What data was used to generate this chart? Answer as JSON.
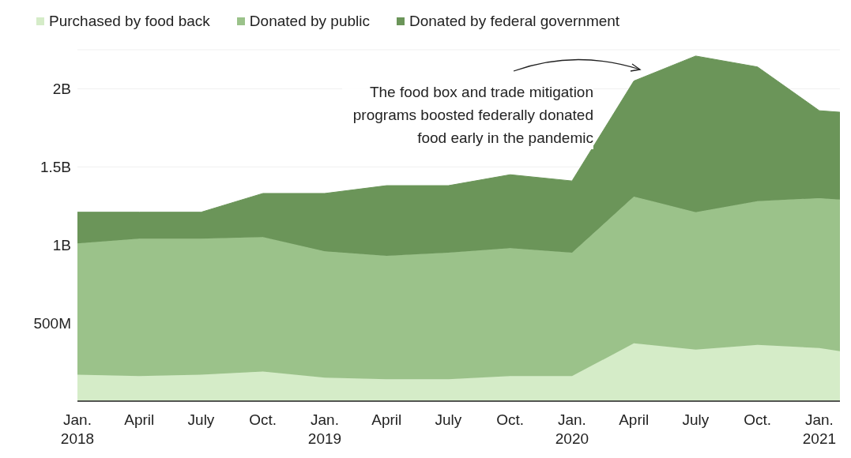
{
  "chart_data": {
    "type": "area",
    "stacked": true,
    "x": [
      "2018-01",
      "2018-04",
      "2018-07",
      "2018-10",
      "2019-01",
      "2019-04",
      "2019-07",
      "2019-10",
      "2020-01",
      "2020-04",
      "2020-07",
      "2020-10",
      "2021-01",
      "2021-02"
    ],
    "series": [
      {
        "name": "Purchased by food back",
        "color": "#d5ecc8",
        "values": [
          170000000,
          160000000,
          170000000,
          190000000,
          150000000,
          140000000,
          140000000,
          160000000,
          160000000,
          370000000,
          330000000,
          360000000,
          340000000,
          320000000
        ]
      },
      {
        "name": "Donated by public",
        "color": "#9bc28a",
        "values": [
          840000000,
          880000000,
          870000000,
          860000000,
          810000000,
          790000000,
          810000000,
          820000000,
          790000000,
          940000000,
          880000000,
          920000000,
          960000000,
          970000000
        ]
      },
      {
        "name": "Donated by federal government",
        "color": "#6b9559",
        "values": [
          200000000,
          170000000,
          170000000,
          280000000,
          370000000,
          450000000,
          430000000,
          470000000,
          460000000,
          740000000,
          1000000000,
          860000000,
          560000000,
          560000000
        ]
      }
    ],
    "xlim": [
      "2018-01",
      "2021-02"
    ],
    "xticks": [
      {
        "value": "2018-01",
        "label": "Jan. 2018"
      },
      {
        "value": "2018-04",
        "label": "April"
      },
      {
        "value": "2018-07",
        "label": "July"
      },
      {
        "value": "2018-10",
        "label": "Oct."
      },
      {
        "value": "2019-01",
        "label": "Jan. 2019"
      },
      {
        "value": "2019-04",
        "label": "April"
      },
      {
        "value": "2019-07",
        "label": "July"
      },
      {
        "value": "2019-10",
        "label": "Oct."
      },
      {
        "value": "2020-01",
        "label": "Jan. 2020"
      },
      {
        "value": "2020-04",
        "label": "April"
      },
      {
        "value": "2020-07",
        "label": "July"
      },
      {
        "value": "2020-10",
        "label": "Oct."
      },
      {
        "value": "2021-01",
        "label": "Jan. 2021"
      }
    ],
    "ylim": [
      0,
      2250000000
    ],
    "yticks": [
      {
        "value": 500000000,
        "label": "500M"
      },
      {
        "value": 1000000000,
        "label": "1B"
      },
      {
        "value": 1500000000,
        "label": "1.5B"
      },
      {
        "value": 2000000000,
        "label": "2B"
      }
    ],
    "grid": "y",
    "legend": "top left",
    "annotations": [
      "The food box and trade mitigation programs boosted federally donated food early in the pandemic"
    ]
  }
}
